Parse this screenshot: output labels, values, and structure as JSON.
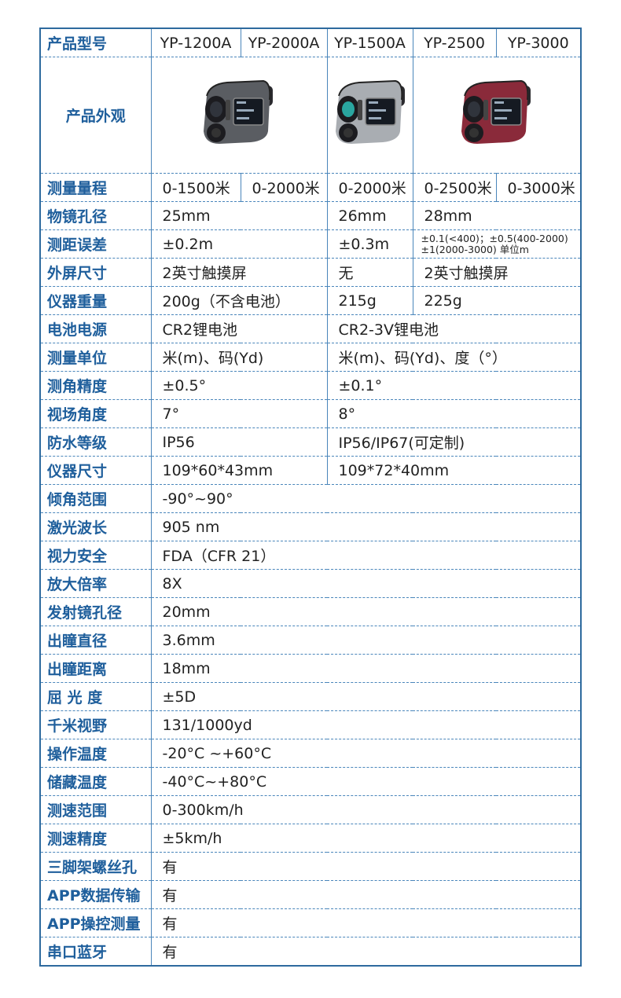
{
  "colors": {
    "border": "#2e6a9e",
    "label": "#1f5f9c",
    "text": "#222222"
  },
  "header": {
    "label": "产品型号",
    "models": [
      "YP-1200A",
      "YP-2000A",
      "YP-1500A",
      "YP-2500",
      "YP-3000"
    ]
  },
  "appearance": {
    "label": "产品外观",
    "images": [
      {
        "name": "rangefinder-gray-image",
        "color": "#5a5d62",
        "span": 2
      },
      {
        "name": "rangefinder-silver-image",
        "color": "#a9adb2",
        "span": 1
      },
      {
        "name": "rangefinder-red-image",
        "color": "#8a2a3a",
        "span": 2
      }
    ]
  },
  "rows": [
    {
      "label": "测量量程",
      "cells": [
        {
          "v": "0-1500米",
          "span": 1
        },
        {
          "v": "0-2000米",
          "span": 1
        },
        {
          "v": "0-2000米",
          "span": 1
        },
        {
          "v": "0-2500米",
          "span": 1
        },
        {
          "v": "0-3000米",
          "span": 1
        }
      ]
    },
    {
      "label": "物镜孔径",
      "cells": [
        {
          "v": "25mm",
          "span": 2
        },
        {
          "v": "26mm",
          "span": 1
        },
        {
          "v": "28mm",
          "span": 2
        }
      ]
    },
    {
      "label": "测距误差",
      "cells": [
        {
          "v": " ±0.2m",
          "span": 2
        },
        {
          "v": "±0.3m",
          "span": 1
        },
        {
          "v": "±0.1(<400)；±0.5(400-2000) ±1(2000-3000) 单位m",
          "span": 2,
          "small": true
        }
      ]
    },
    {
      "label": "外屏尺寸",
      "cells": [
        {
          "v": "2英寸触摸屏",
          "span": 2
        },
        {
          "v": "无",
          "span": 1
        },
        {
          "v": "2英寸触摸屏",
          "span": 2
        }
      ]
    },
    {
      "label": "仪器重量",
      "cells": [
        {
          "v": "200g（不含电池）",
          "span": 2
        },
        {
          "v": "215g",
          "span": 1
        },
        {
          "v": "225g",
          "span": 2
        }
      ]
    },
    {
      "label": "电池电源",
      "cells": [
        {
          "v": "CR2锂电池",
          "span": 2
        },
        {
          "v": "CR2-3V锂电池",
          "span": 3
        }
      ]
    },
    {
      "label": "测量单位",
      "cells": [
        {
          "v": "米(m)、码(Yd)",
          "span": 2
        },
        {
          "v": "米(m)、码(Yd)、度（°）",
          "span": 3
        }
      ]
    },
    {
      "label": "测角精度",
      "cells": [
        {
          "v": "±0.5°",
          "span": 2
        },
        {
          "v": "±0.1°",
          "span": 3
        }
      ]
    },
    {
      "label": "视场角度",
      "cells": [
        {
          "v": "7°",
          "span": 2
        },
        {
          "v": "8°",
          "span": 3
        }
      ]
    },
    {
      "label": "防水等级",
      "cells": [
        {
          "v": "IP56",
          "span": 2
        },
        {
          "v": "IP56/IP67(可定制)",
          "span": 3
        }
      ]
    },
    {
      "label": "仪器尺寸",
      "cells": [
        {
          "v": "109*60*43mm",
          "span": 2
        },
        {
          "v": "109*72*40mm",
          "span": 3
        }
      ]
    },
    {
      "label": "倾角范围",
      "cells": [
        {
          "v": "-90°~90°",
          "span": 5
        }
      ]
    },
    {
      "label": "激光波长",
      "cells": [
        {
          "v": "905 nm",
          "span": 5
        }
      ]
    },
    {
      "label": "视力安全",
      "cells": [
        {
          "v": "FDA（CFR 21）",
          "span": 5
        }
      ]
    },
    {
      "label": "放大倍率",
      "cells": [
        {
          "v": "8X",
          "span": 5
        }
      ]
    },
    {
      "label": "发射镜孔径",
      "cells": [
        {
          "v": "20mm",
          "span": 5
        }
      ]
    },
    {
      "label": "出瞳直径",
      "cells": [
        {
          "v": "3.6mm",
          "span": 5
        }
      ]
    },
    {
      "label": "出瞳距离",
      "cells": [
        {
          "v": "18mm",
          "span": 5
        }
      ]
    },
    {
      "label": "屈 光 度",
      "cells": [
        {
          "v": "±5D",
          "span": 5
        }
      ]
    },
    {
      "label": "千米视野",
      "cells": [
        {
          "v": "131/1000yd",
          "span": 5
        }
      ]
    },
    {
      "label": "操作温度",
      "cells": [
        {
          "v": "-20°C ~+60°C",
          "span": 5
        }
      ]
    },
    {
      "label": "储藏温度",
      "cells": [
        {
          "v": " -40°C~+80°C",
          "span": 5
        }
      ]
    },
    {
      "label": "测速范围",
      "cells": [
        {
          "v": "0-300km/h",
          "span": 5
        }
      ]
    },
    {
      "label": "测速精度",
      "cells": [
        {
          "v": " ±5km/h",
          "span": 5
        }
      ]
    },
    {
      "label": "三脚架螺丝孔",
      "cells": [
        {
          "v": "有",
          "span": 5
        }
      ]
    },
    {
      "label": "APP数据传输",
      "cells": [
        {
          "v": "有",
          "span": 5
        }
      ]
    },
    {
      "label": "APP操控测量",
      "cells": [
        {
          "v": "有",
          "span": 5
        }
      ]
    },
    {
      "label": "串口蓝牙",
      "cells": [
        {
          "v": "有",
          "span": 5
        }
      ]
    }
  ]
}
